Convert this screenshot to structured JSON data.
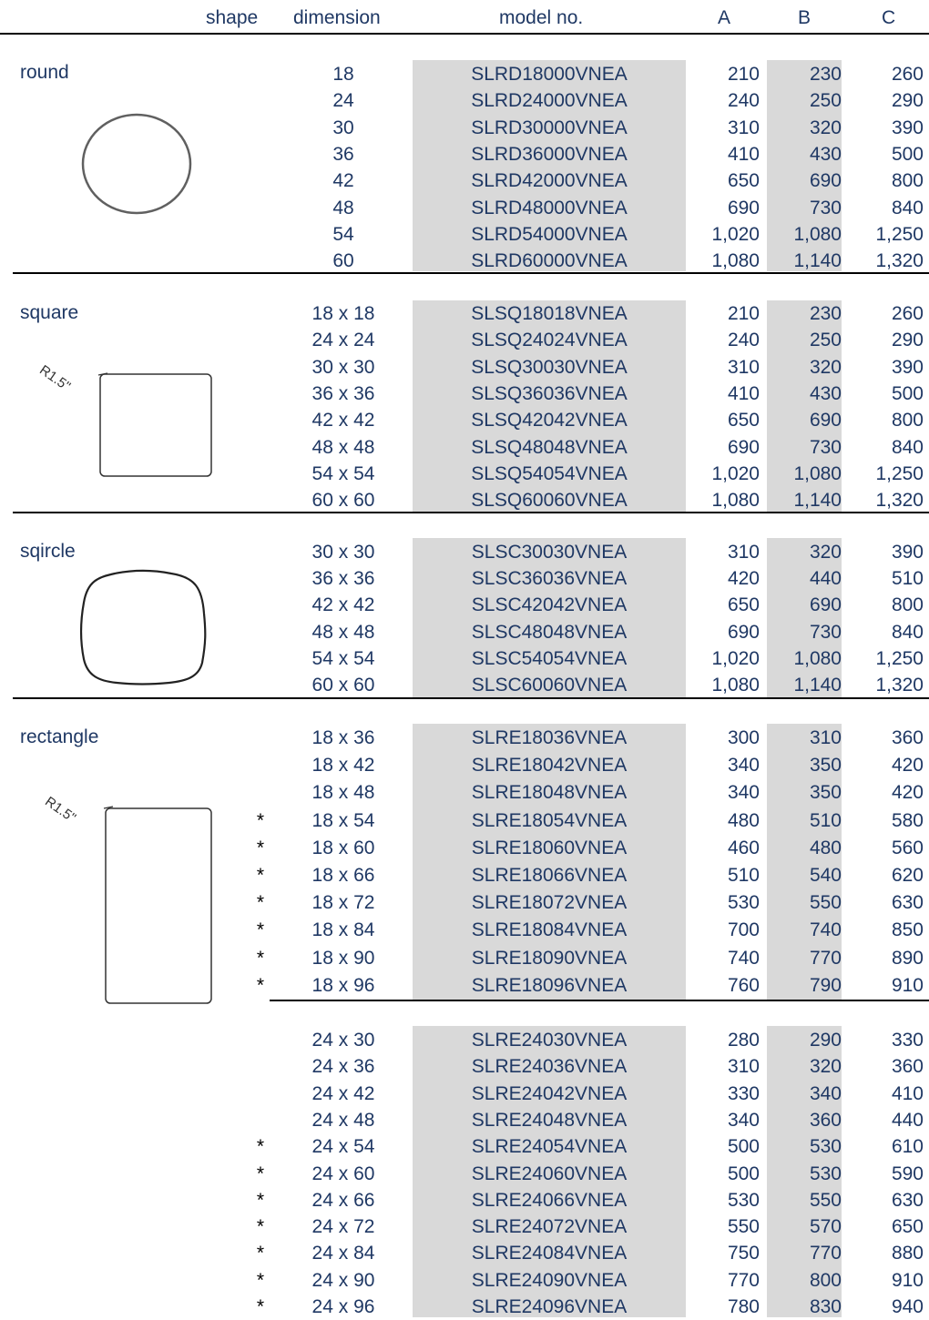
{
  "headers": {
    "shape": "shape",
    "dimension": "dimension",
    "model": "model no.",
    "a": "A",
    "b": "B",
    "c": "C"
  },
  "sections": {
    "round": {
      "label": "round",
      "rows": [
        {
          "dim": "18",
          "model": "SLRD18000VNEA",
          "a": "210",
          "b": "230",
          "c": "260",
          "star": ""
        },
        {
          "dim": "24",
          "model": "SLRD24000VNEA",
          "a": "240",
          "b": "250",
          "c": "290",
          "star": ""
        },
        {
          "dim": "30",
          "model": "SLRD30000VNEA",
          "a": "310",
          "b": "320",
          "c": "390",
          "star": ""
        },
        {
          "dim": "36",
          "model": "SLRD36000VNEA",
          "a": "410",
          "b": "430",
          "c": "500",
          "star": ""
        },
        {
          "dim": "42",
          "model": "SLRD42000VNEA",
          "a": "650",
          "b": "690",
          "c": "800",
          "star": ""
        },
        {
          "dim": "48",
          "model": "SLRD48000VNEA",
          "a": "690",
          "b": "730",
          "c": "840",
          "star": ""
        },
        {
          "dim": "54",
          "model": "SLRD54000VNEA",
          "a": "1,020",
          "b": "1,080",
          "c": "1,250",
          "star": ""
        },
        {
          "dim": "60",
          "model": "SLRD60000VNEA",
          "a": "1,080",
          "b": "1,140",
          "c": "1,320",
          "star": ""
        }
      ]
    },
    "square": {
      "label": "square",
      "radius_label": "R1.5\"",
      "rows": [
        {
          "dim": "18 x 18",
          "model": "SLSQ18018VNEA",
          "a": "210",
          "b": "230",
          "c": "260",
          "star": ""
        },
        {
          "dim": "24 x 24",
          "model": "SLSQ24024VNEA",
          "a": "240",
          "b": "250",
          "c": "290",
          "star": ""
        },
        {
          "dim": "30 x 30",
          "model": "SLSQ30030VNEA",
          "a": "310",
          "b": "320",
          "c": "390",
          "star": ""
        },
        {
          "dim": "36 x 36",
          "model": "SLSQ36036VNEA",
          "a": "410",
          "b": "430",
          "c": "500",
          "star": ""
        },
        {
          "dim": "42 x 42",
          "model": "SLSQ42042VNEA",
          "a": "650",
          "b": "690",
          "c": "800",
          "star": ""
        },
        {
          "dim": "48 x 48",
          "model": "SLSQ48048VNEA",
          "a": "690",
          "b": "730",
          "c": "840",
          "star": ""
        },
        {
          "dim": "54 x 54",
          "model": "SLSQ54054VNEA",
          "a": "1,020",
          "b": "1,080",
          "c": "1,250",
          "star": ""
        },
        {
          "dim": "60 x 60",
          "model": "SLSQ60060VNEA",
          "a": "1,080",
          "b": "1,140",
          "c": "1,320",
          "star": ""
        }
      ]
    },
    "sqircle": {
      "label": "sqircle",
      "rows": [
        {
          "dim": "30 x 30",
          "model": "SLSC30030VNEA",
          "a": "310",
          "b": "320",
          "c": "390",
          "star": ""
        },
        {
          "dim": "36 x 36",
          "model": "SLSC36036VNEA",
          "a": "420",
          "b": "440",
          "c": "510",
          "star": ""
        },
        {
          "dim": "42 x 42",
          "model": "SLSC42042VNEA",
          "a": "650",
          "b": "690",
          "c": "800",
          "star": ""
        },
        {
          "dim": "48 x 48",
          "model": "SLSC48048VNEA",
          "a": "690",
          "b": "730",
          "c": "840",
          "star": ""
        },
        {
          "dim": "54 x 54",
          "model": "SLSC54054VNEA",
          "a": "1,020",
          "b": "1,080",
          "c": "1,250",
          "star": ""
        },
        {
          "dim": "60 x 60",
          "model": "SLSC60060VNEA",
          "a": "1,080",
          "b": "1,140",
          "c": "1,320",
          "star": ""
        }
      ]
    },
    "rectangle": {
      "label": "rectangle",
      "radius_label": "R1.5\"",
      "rows": [
        {
          "dim": "18 x 36",
          "model": "SLRE18036VNEA",
          "a": "300",
          "b": "310",
          "c": "360",
          "star": ""
        },
        {
          "dim": "18 x 42",
          "model": "SLRE18042VNEA",
          "a": "340",
          "b": "350",
          "c": "420",
          "star": ""
        },
        {
          "dim": "18 x 48",
          "model": "SLRE18048VNEA",
          "a": "340",
          "b": "350",
          "c": "420",
          "star": ""
        },
        {
          "dim": "18 x 54",
          "model": "SLRE18054VNEA",
          "a": "480",
          "b": "510",
          "c": "580",
          "star": "*"
        },
        {
          "dim": "18 x 60",
          "model": "SLRE18060VNEA",
          "a": "460",
          "b": "480",
          "c": "560",
          "star": "*"
        },
        {
          "dim": "18 x 66",
          "model": "SLRE18066VNEA",
          "a": "510",
          "b": "540",
          "c": "620",
          "star": "*"
        },
        {
          "dim": "18 x 72",
          "model": "SLRE18072VNEA",
          "a": "530",
          "b": "550",
          "c": "630",
          "star": "*"
        },
        {
          "dim": "18 x 84",
          "model": "SLRE18084VNEA",
          "a": "700",
          "b": "740",
          "c": "850",
          "star": "*"
        },
        {
          "dim": "18 x 90",
          "model": "SLRE18090VNEA",
          "a": "740",
          "b": "770",
          "c": "890",
          "star": "*"
        },
        {
          "dim": "18 x 96",
          "model": "SLRE18096VNEA",
          "a": "760",
          "b": "790",
          "c": "910",
          "star": "*"
        }
      ]
    },
    "rectangle24": {
      "rows": [
        {
          "dim": "24 x 30",
          "model": "SLRE24030VNEA",
          "a": "280",
          "b": "290",
          "c": "330",
          "star": ""
        },
        {
          "dim": "24 x 36",
          "model": "SLRE24036VNEA",
          "a": "310",
          "b": "320",
          "c": "360",
          "star": ""
        },
        {
          "dim": "24 x 42",
          "model": "SLRE24042VNEA",
          "a": "330",
          "b": "340",
          "c": "410",
          "star": ""
        },
        {
          "dim": "24 x 48",
          "model": "SLRE24048VNEA",
          "a": "340",
          "b": "360",
          "c": "440",
          "star": ""
        },
        {
          "dim": "24 x 54",
          "model": "SLRE24054VNEA",
          "a": "500",
          "b": "530",
          "c": "610",
          "star": "*"
        },
        {
          "dim": "24 x 60",
          "model": "SLRE24060VNEA",
          "a": "500",
          "b": "530",
          "c": "590",
          "star": "*"
        },
        {
          "dim": "24 x 66",
          "model": "SLRE24066VNEA",
          "a": "530",
          "b": "550",
          "c": "630",
          "star": "*"
        },
        {
          "dim": "24 x 72",
          "model": "SLRE24072VNEA",
          "a": "550",
          "b": "570",
          "c": "650",
          "star": "*"
        },
        {
          "dim": "24 x 84",
          "model": "SLRE24084VNEA",
          "a": "750",
          "b": "770",
          "c": "880",
          "star": "*"
        },
        {
          "dim": "24 x 90",
          "model": "SLRE24090VNEA",
          "a": "770",
          "b": "800",
          "c": "910",
          "star": "*"
        },
        {
          "dim": "24 x 96",
          "model": "SLRE24096VNEA",
          "a": "780",
          "b": "830",
          "c": "940",
          "star": "*"
        }
      ]
    }
  },
  "colors": {
    "text": "#1f3864",
    "shade": "#d9d9d9",
    "rule": "#000000"
  }
}
